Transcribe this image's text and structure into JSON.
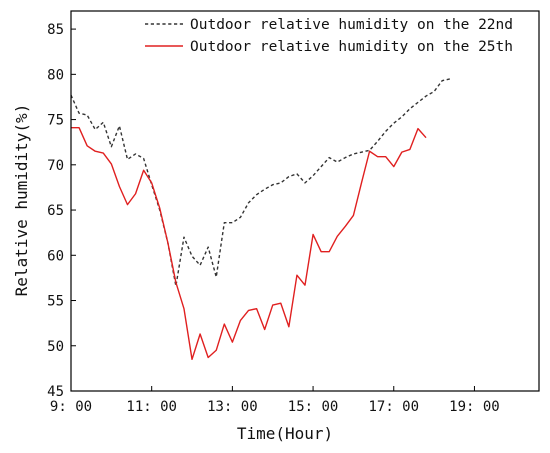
{
  "chart_data": {
    "type": "line",
    "xlabel": "Time(Hour)",
    "ylabel": "Relative humidity(%)",
    "xlim": [
      9,
      20.6
    ],
    "ylim": [
      45,
      87
    ],
    "x_ticks": [
      {
        "value": 9,
        "label": "9: 00"
      },
      {
        "value": 11,
        "label": "11: 00"
      },
      {
        "value": 13,
        "label": "13: 00"
      },
      {
        "value": 15,
        "label": "15: 00"
      },
      {
        "value": 17,
        "label": "17: 00"
      },
      {
        "value": 19,
        "label": "19: 00"
      }
    ],
    "y_ticks": [
      {
        "value": 45,
        "label": "45"
      },
      {
        "value": 50,
        "label": "50"
      },
      {
        "value": 55,
        "label": "55"
      },
      {
        "value": 60,
        "label": "60"
      },
      {
        "value": 65,
        "label": "65"
      },
      {
        "value": 70,
        "label": "70"
      },
      {
        "value": 75,
        "label": "75"
      },
      {
        "value": 80,
        "label": "80"
      },
      {
        "value": 85,
        "label": "85"
      }
    ],
    "legend_position": "top-right",
    "grid": false,
    "x": [
      9.0,
      9.2,
      9.4,
      9.6,
      9.8,
      10.0,
      10.2,
      10.4,
      10.6,
      10.8,
      11.0,
      11.2,
      11.4,
      11.6,
      11.8,
      12.0,
      12.2,
      12.4,
      12.6,
      12.8,
      13.0,
      13.2,
      13.4,
      13.6,
      13.8,
      14.0,
      14.2,
      14.4,
      14.6,
      14.8,
      15.0,
      15.2,
      15.4,
      15.6,
      15.8,
      16.0,
      16.2,
      16.4,
      16.6,
      16.8,
      17.0,
      17.2,
      17.4,
      17.6,
      17.8,
      18.0,
      18.2,
      18.4,
      18.6,
      18.8,
      19.0,
      19.2,
      19.4,
      19.6,
      19.8,
      20.0
    ],
    "series": [
      {
        "name": "Outdoor relative humidity on the 22nd",
        "color": "#333333",
        "dash": "dashed",
        "values": [
          77.7,
          75.7,
          75.5,
          73.9,
          74.7,
          72.0,
          74.3,
          70.6,
          71.2,
          70.7,
          67.8,
          65.0,
          61.4,
          56.6,
          62.0,
          59.9,
          58.9,
          60.9,
          57.6,
          63.6,
          63.6,
          64.2,
          65.8,
          66.7,
          67.3,
          67.8,
          68.0,
          68.7,
          69.0,
          68.0,
          68.8,
          69.8,
          70.8,
          70.3,
          70.8,
          71.2,
          71.4,
          71.6,
          72.6,
          73.7,
          74.6,
          75.3,
          76.2,
          76.9,
          77.6,
          78.1,
          79.3,
          79.5,
          null,
          null,
          null,
          null,
          null,
          null,
          null,
          null
        ]
      },
      {
        "name": "Outdoor relative humidity on the 25th",
        "color": "#e02020",
        "dash": "solid",
        "values": [
          74.1,
          74.1,
          72.1,
          71.5,
          71.3,
          70.1,
          67.6,
          65.6,
          66.8,
          69.4,
          68.0,
          65.2,
          61.4,
          57.0,
          54.1,
          48.5,
          51.3,
          48.7,
          49.5,
          52.4,
          50.4,
          52.8,
          53.9,
          54.1,
          51.8,
          54.5,
          54.7,
          52.1,
          57.8,
          56.7,
          62.3,
          60.4,
          60.4,
          62.1,
          63.2,
          64.4,
          68.0,
          71.5,
          70.9,
          70.9,
          69.8,
          71.4,
          71.7,
          74.0,
          73.0,
          null,
          null,
          null,
          null,
          null,
          null,
          null,
          null,
          null,
          null,
          null
        ]
      }
    ]
  }
}
